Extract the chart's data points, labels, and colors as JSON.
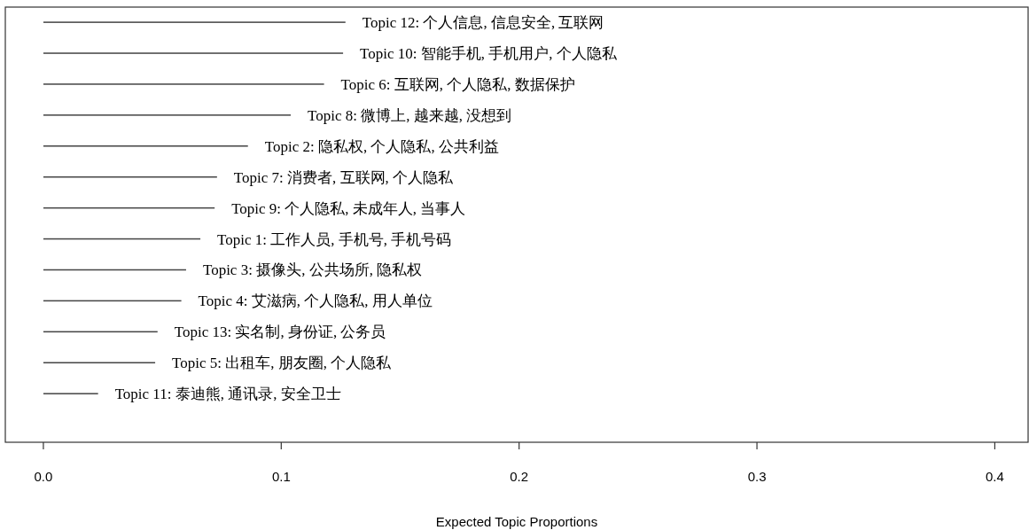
{
  "chart_data": {
    "type": "bar",
    "orientation": "horizontal",
    "xlabel": "Expected Topic Proportions",
    "categories": [
      "Topic 12: 个人信息, 信息安全, 互联网",
      "Topic 10: 智能手机, 手机用户, 个人隐私",
      "Topic 6: 互联网, 个人隐私, 数据保护",
      "Topic 8: 微博上, 越来越, 没想到",
      "Topic 2: 隐私权, 个人隐私, 公共利益",
      "Topic 7: 消费者, 互联网, 个人隐私",
      "Topic 9: 个人隐私, 未成年人, 当事人",
      "Topic 1: 工作人员, 手机号, 手机号码",
      "Topic 3: 摄像头, 公共场所, 隐私权",
      "Topic 4: 艾滋病, 个人隐私, 用人单位",
      "Topic 13: 实名制, 身份证, 公务员",
      "Topic 5: 出租车, 朋友圈, 个人隐私",
      "Topic 11: 泰迪熊, 通讯录, 安全卫士"
    ],
    "values": [
      0.127,
      0.126,
      0.118,
      0.104,
      0.086,
      0.073,
      0.072,
      0.066,
      0.06,
      0.058,
      0.048,
      0.047,
      0.023
    ],
    "color": "#444444",
    "xlim": [
      -0.016,
      0.414
    ],
    "xticks": [
      {
        "value": 0,
        "label": "0.0"
      },
      0.1,
      0.2,
      0.3,
      0.4
    ]
  }
}
